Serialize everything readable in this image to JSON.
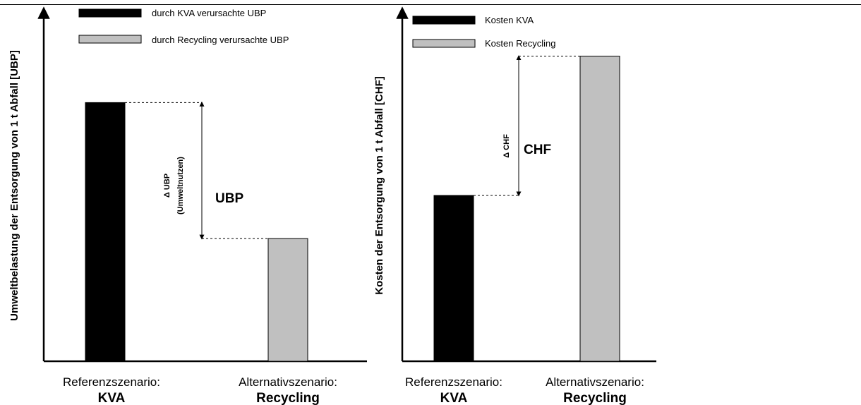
{
  "chart_data": [
    {
      "type": "bar",
      "ylabel": "Umweltbelastung der Entsorgung von 1 t Abfall [UBP]",
      "categories": [
        {
          "line1": "Referenzszenario:",
          "line2": "KVA"
        },
        {
          "line1": "Alternativszenario:",
          "line2": "Recycling"
        }
      ],
      "series": [
        {
          "name": "durch KVA verursachte UBP",
          "color": "#000000",
          "values": [
            0.78,
            0.0
          ]
        },
        {
          "name": "durch Recycling verursachte UBP",
          "color": "#c0c0c0",
          "values": [
            0.0,
            0.37
          ]
        }
      ],
      "ylim": [
        0,
        1
      ],
      "legend": "top",
      "grid": false,
      "annotation": {
        "delta_line1": "Δ UBP",
        "delta_line2": "(Umweltnutzen)",
        "big": "UBP"
      }
    },
    {
      "type": "bar",
      "ylabel": "Kosten der Entsorgung von 1 t Abfall [CHF]",
      "categories": [
        {
          "line1": "Referenzszenario:",
          "line2": "KVA"
        },
        {
          "line1": "Alternativszenario:",
          "line2": "Recycling"
        }
      ],
      "series": [
        {
          "name": "Kosten KVA",
          "color": "#000000",
          "values": [
            0.5,
            0.0
          ]
        },
        {
          "name": "Kosten Recycling",
          "color": "#c0c0c0",
          "values": [
            0.0,
            0.92
          ]
        }
      ],
      "ylim": [
        0,
        1
      ],
      "legend": "top",
      "grid": false,
      "annotation": {
        "delta_line1": "Δ CHF",
        "big": "CHF"
      }
    }
  ]
}
